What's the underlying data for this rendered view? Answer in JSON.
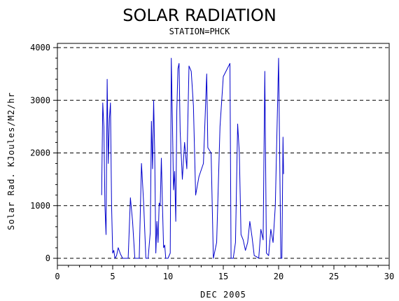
{
  "chart_data": {
    "type": "line",
    "title": "SOLAR RADIATION",
    "subtitle": "STATION=PHCK",
    "xlabel": "DEC 2005",
    "ylabel": "Solar Rad. KJoules/M2/hr",
    "xlim": [
      0,
      30
    ],
    "ylim": [
      0,
      4000
    ],
    "x_ticks": [
      0,
      5,
      10,
      15,
      20,
      25,
      30
    ],
    "x_tick_labels": [
      "0",
      "5",
      "10",
      "15",
      "20",
      "25",
      "30"
    ],
    "y_ticks": [
      0,
      1000,
      2000,
      3000,
      4000
    ],
    "y_tick_labels": [
      "0",
      "1000",
      "2000",
      "3000",
      "4000"
    ],
    "grid": "horizontal dashed",
    "line_color": "#0000cc",
    "series": [
      {
        "values_xy": [
          [
            4.0,
            1200
          ],
          [
            4.1,
            2950
          ],
          [
            4.2,
            2500
          ],
          [
            4.3,
            1000
          ],
          [
            4.4,
            450
          ],
          [
            4.5,
            3400
          ],
          [
            4.6,
            1800
          ],
          [
            4.7,
            2650
          ],
          [
            4.8,
            2950
          ],
          [
            4.9,
            1000
          ],
          [
            5.0,
            100
          ],
          [
            5.1,
            150
          ],
          [
            5.2,
            0
          ],
          [
            5.35,
            50
          ],
          [
            5.5,
            200
          ],
          [
            5.7,
            80
          ],
          [
            5.9,
            0
          ],
          [
            6.0,
            0
          ],
          [
            6.2,
            0
          ],
          [
            6.4,
            0
          ],
          [
            6.6,
            1150
          ],
          [
            6.8,
            700
          ],
          [
            7.0,
            0
          ],
          [
            7.2,
            0
          ],
          [
            7.4,
            0
          ],
          [
            7.6,
            1800
          ],
          [
            7.8,
            1050
          ],
          [
            8.0,
            0
          ],
          [
            8.2,
            0
          ],
          [
            8.4,
            500
          ],
          [
            8.5,
            2600
          ],
          [
            8.6,
            1700
          ],
          [
            8.7,
            3000
          ],
          [
            8.8,
            2000
          ],
          [
            8.9,
            100
          ],
          [
            9.0,
            700
          ],
          [
            9.1,
            300
          ],
          [
            9.2,
            1050
          ],
          [
            9.3,
            1000
          ],
          [
            9.4,
            1900
          ],
          [
            9.5,
            1000
          ],
          [
            9.6,
            200
          ],
          [
            9.7,
            250
          ],
          [
            9.8,
            0
          ],
          [
            10.0,
            0
          ],
          [
            10.2,
            100
          ],
          [
            10.3,
            3800
          ],
          [
            10.4,
            2600
          ],
          [
            10.5,
            1300
          ],
          [
            10.6,
            1650
          ],
          [
            10.7,
            700
          ],
          [
            10.8,
            2800
          ],
          [
            10.9,
            3600
          ],
          [
            11.0,
            3700
          ],
          [
            11.1,
            2400
          ],
          [
            11.3,
            1500
          ],
          [
            11.5,
            2200
          ],
          [
            11.7,
            1700
          ],
          [
            11.9,
            3650
          ],
          [
            12.1,
            3550
          ],
          [
            12.3,
            2900
          ],
          [
            12.5,
            1200
          ],
          [
            12.8,
            1550
          ],
          [
            13.2,
            1800
          ],
          [
            13.5,
            3500
          ],
          [
            13.6,
            2100
          ],
          [
            13.9,
            2000
          ],
          [
            14.1,
            0
          ],
          [
            14.4,
            300
          ],
          [
            14.7,
            2500
          ],
          [
            15.0,
            3450
          ],
          [
            15.6,
            3700
          ],
          [
            15.7,
            0
          ],
          [
            15.9,
            0
          ],
          [
            16.1,
            300
          ],
          [
            16.3,
            2550
          ],
          [
            16.45,
            2000
          ],
          [
            16.6,
            450
          ],
          [
            16.8,
            350
          ],
          [
            17.0,
            150
          ],
          [
            17.2,
            300
          ],
          [
            17.4,
            700
          ],
          [
            17.6,
            400
          ],
          [
            17.8,
            50
          ],
          [
            18.0,
            30
          ],
          [
            18.2,
            0
          ],
          [
            18.4,
            550
          ],
          [
            18.6,
            350
          ],
          [
            18.75,
            3550
          ],
          [
            18.9,
            100
          ],
          [
            19.1,
            50
          ],
          [
            19.3,
            550
          ],
          [
            19.5,
            300
          ],
          [
            19.7,
            1000
          ],
          [
            20.0,
            3800
          ],
          [
            20.2,
            0
          ],
          [
            20.3,
            0
          ],
          [
            20.4,
            2300
          ],
          [
            20.45,
            1600
          ]
        ]
      }
    ]
  }
}
